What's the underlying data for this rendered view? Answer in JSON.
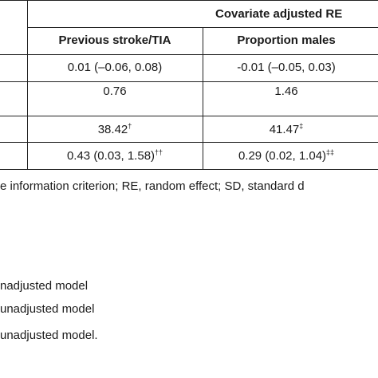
{
  "table": {
    "group_header": "Covariate adjusted RE",
    "columns": [
      {
        "label": "Previous stroke/TIA"
      },
      {
        "label": "Proportion males"
      }
    ],
    "rows": [
      {
        "cells": [
          {
            "value": "0.01 (–0.06, 0.08)",
            "sup": ""
          },
          {
            "value": "-0.01 (–0.05, 0.03)",
            "sup": ""
          }
        ]
      },
      {
        "cells": [
          {
            "value": "0.76",
            "sup": ""
          },
          {
            "value": "1.46",
            "sup": ""
          }
        ]
      },
      {
        "cells": [
          {
            "value": "38.42",
            "sup": "†"
          },
          {
            "value": "41.47",
            "sup": "‡"
          }
        ]
      },
      {
        "cells": [
          {
            "value": "0.43 (0.03, 1.58)",
            "sup": "††"
          },
          {
            "value": "0.29 (0.02, 1.04)",
            "sup": "‡‡"
          }
        ]
      }
    ]
  },
  "footnotes": {
    "abbreviations": "e information criterion; RE, random effect; SD, standard d",
    "lines": [
      "nadjusted model",
      "unadjusted model",
      "unadjusted model."
    ]
  }
}
